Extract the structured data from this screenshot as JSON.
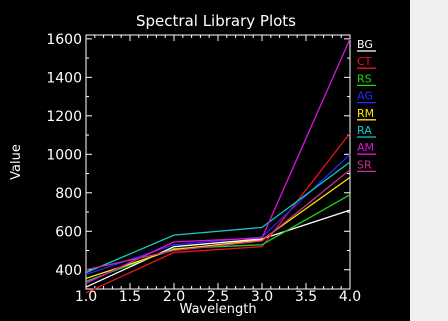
{
  "chart_data": {
    "type": "line",
    "title": "Spectral Library Plots",
    "xlabel": "Wavelength",
    "ylabel": "Value",
    "x": [
      1.0,
      2.0,
      3.0,
      4.0
    ],
    "xlim": [
      1.0,
      4.0
    ],
    "ylim": [
      300,
      1620
    ],
    "xticks": [
      "1.0",
      "1.5",
      "2.0",
      "2.5",
      "3.0",
      "3.5",
      "4.0"
    ],
    "yticks": [
      "400",
      "600",
      "800",
      "1000",
      "1200",
      "1400",
      "1600"
    ],
    "grid": false,
    "legend_position": "right",
    "series": [
      {
        "name": "BG",
        "color": "#ffffff",
        "values": [
          310,
          520,
          560,
          710
        ]
      },
      {
        "name": "CT",
        "color": "#e8141e",
        "values": [
          280,
          490,
          520,
          1110
        ]
      },
      {
        "name": "RS",
        "color": "#1ed21e",
        "values": [
          340,
          510,
          530,
          790
        ]
      },
      {
        "name": "AG",
        "color": "#2828ff",
        "values": [
          375,
          530,
          570,
          1000
        ]
      },
      {
        "name": "RM",
        "color": "#ffe600",
        "values": [
          355,
          505,
          555,
          880
        ]
      },
      {
        "name": "RA",
        "color": "#14c8c8",
        "values": [
          385,
          580,
          620,
          960
        ]
      },
      {
        "name": "AM",
        "color": "#dc14dc",
        "values": [
          330,
          545,
          565,
          1600
        ]
      },
      {
        "name": "SR",
        "color": "#c8328c",
        "values": [
          400,
          500,
          550,
          920
        ]
      }
    ]
  }
}
